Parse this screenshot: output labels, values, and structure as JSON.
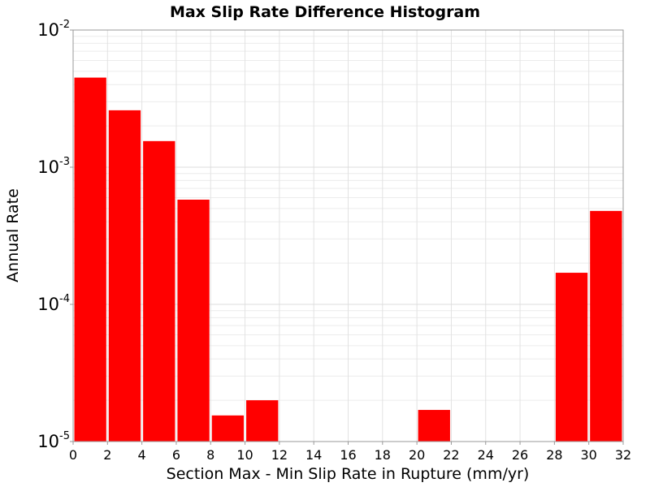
{
  "chart_data": {
    "type": "bar",
    "title": "Max Slip Rate Difference Histogram",
    "xlabel": "Section Max - Min Slip Rate in Rupture (mm/yr)",
    "ylabel": "Annual Rate",
    "yscale": "log",
    "xlim": [
      0,
      32
    ],
    "ylim": [
      1e-05,
      0.01
    ],
    "grid": true,
    "bar_color": "#ff0000",
    "xticks": [
      0,
      2,
      4,
      6,
      8,
      10,
      12,
      14,
      16,
      18,
      20,
      22,
      24,
      26,
      28,
      30,
      32
    ],
    "yticks": [
      {
        "value": 1e-05,
        "base": "10",
        "exp": "-5"
      },
      {
        "value": 0.0001,
        "base": "10",
        "exp": "-4"
      },
      {
        "value": 0.001,
        "base": "10",
        "exp": "-3"
      },
      {
        "value": 0.01,
        "base": "10",
        "exp": "-2"
      }
    ],
    "bars": [
      {
        "x0": 0,
        "x1": 2,
        "value": 0.0045
      },
      {
        "x0": 2,
        "x1": 4,
        "value": 0.0026
      },
      {
        "x0": 4,
        "x1": 6,
        "value": 0.00155
      },
      {
        "x0": 6,
        "x1": 8,
        "value": 0.00058
      },
      {
        "x0": 8,
        "x1": 10,
        "value": 1.55e-05
      },
      {
        "x0": 10,
        "x1": 12,
        "value": 2e-05
      },
      {
        "x0": 20,
        "x1": 22,
        "value": 1.7e-05
      },
      {
        "x0": 28,
        "x1": 30,
        "value": 0.00017
      },
      {
        "x0": 30,
        "x1": 32,
        "value": 0.00048
      }
    ]
  }
}
